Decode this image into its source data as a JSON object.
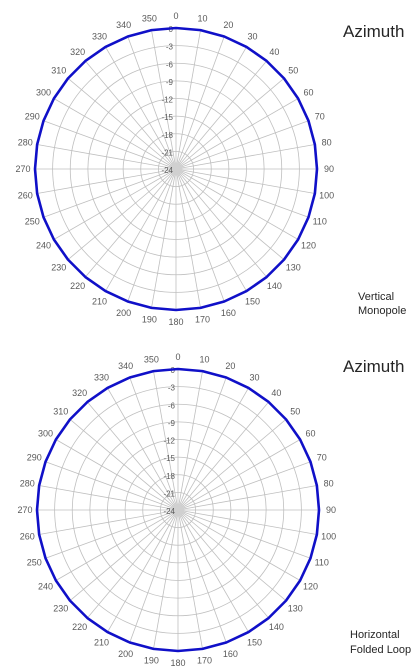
{
  "chart_data": [
    {
      "type": "radar",
      "title": "Azimuth",
      "note_lines": [
        "Vertical",
        "Monopole"
      ],
      "angle_labels": [
        "0",
        "10",
        "20",
        "30",
        "40",
        "50",
        "60",
        "70",
        "80",
        "90",
        "100",
        "110",
        "120",
        "130",
        "140",
        "150",
        "160",
        "170",
        "180",
        "190",
        "200",
        "210",
        "220",
        "230",
        "240",
        "250",
        "260",
        "270",
        "280",
        "290",
        "300",
        "310",
        "320",
        "330",
        "340",
        "350"
      ],
      "radial_labels": [
        "0",
        "-3",
        "-6",
        "-9",
        "-12",
        "-15",
        "-18",
        "-21",
        "-24"
      ],
      "rlim": [
        -24,
        0
      ],
      "series": [
        {
          "values": [
            0,
            0,
            0,
            0,
            0,
            0,
            0,
            0,
            0,
            0,
            0,
            0,
            0,
            0,
            0,
            0,
            0,
            0,
            0,
            0,
            0,
            0,
            0,
            0,
            0,
            0,
            0,
            0,
            0,
            0,
            0,
            0,
            0,
            0,
            0,
            0
          ]
        }
      ],
      "line_color": "#1010c8",
      "grid_color": "#bfbfbf"
    },
    {
      "type": "radar",
      "title": "Azimuth",
      "note_lines": [
        "Horizontal",
        "Folded Loop"
      ],
      "angle_labels": [
        "0",
        "10",
        "20",
        "30",
        "40",
        "50",
        "60",
        "70",
        "80",
        "90",
        "100",
        "110",
        "120",
        "130",
        "140",
        "150",
        "160",
        "170",
        "180",
        "190",
        "200",
        "210",
        "220",
        "230",
        "240",
        "250",
        "260",
        "270",
        "280",
        "290",
        "300",
        "310",
        "320",
        "330",
        "340",
        "350"
      ],
      "radial_labels": [
        "0",
        "-3",
        "-6",
        "-9",
        "-12",
        "-15",
        "-18",
        "-21",
        "-24"
      ],
      "rlim": [
        -24,
        0
      ],
      "series": [
        {
          "values": [
            0,
            0,
            0,
            0,
            0,
            0,
            0,
            0,
            0,
            0,
            0,
            0,
            0,
            0,
            0,
            0,
            0,
            0,
            0,
            0,
            0,
            0,
            0,
            0,
            0,
            0,
            0,
            0,
            0,
            0,
            0,
            0,
            0,
            0,
            0,
            0
          ]
        }
      ],
      "line_color": "#1010c8",
      "grid_color": "#bfbfbf"
    }
  ]
}
